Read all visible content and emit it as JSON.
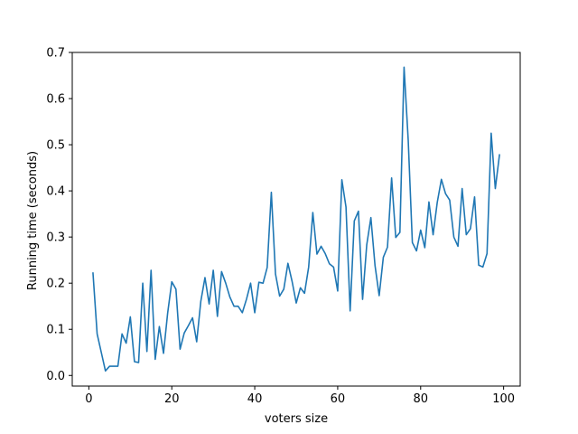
{
  "chart_data": {
    "type": "line",
    "title": "",
    "xlabel": "voters size",
    "ylabel": "Running time (seconds)",
    "xlim": [
      -4,
      104
    ],
    "ylim": [
      -0.023,
      0.7
    ],
    "xticks": [
      0,
      20,
      40,
      60,
      80,
      100
    ],
    "yticks": [
      0.0,
      0.1,
      0.2,
      0.3,
      0.4,
      0.5,
      0.6,
      0.7
    ],
    "xtick_labels": [
      "0",
      "20",
      "40",
      "60",
      "80",
      "100"
    ],
    "ytick_labels": [
      "0.0",
      "0.1",
      "0.2",
      "0.3",
      "0.4",
      "0.5",
      "0.6",
      "0.7"
    ],
    "grid": false,
    "colors": {
      "line": "#1f77b4"
    },
    "series": [
      {
        "x": [
          1,
          2,
          3,
          4,
          5,
          6,
          7,
          8,
          9,
          10,
          11,
          12,
          13,
          14,
          15,
          16,
          17,
          18,
          19,
          20,
          21,
          22,
          23,
          24,
          25,
          26,
          27,
          28,
          29,
          30,
          31,
          32,
          33,
          34,
          35,
          36,
          37,
          38,
          39,
          40,
          41,
          42,
          43,
          44,
          45,
          46,
          47,
          48,
          49,
          50,
          51,
          52,
          53,
          54,
          55,
          56,
          57,
          58,
          59,
          60,
          61,
          62,
          63,
          64,
          65,
          66,
          67,
          68,
          69,
          70,
          71,
          72,
          73,
          74,
          75,
          76,
          77,
          78,
          79,
          80,
          81,
          82,
          83,
          84,
          85,
          86,
          87,
          88,
          89,
          90,
          91,
          92,
          93,
          94,
          95,
          96,
          97,
          98,
          99
        ],
        "y": [
          0.222,
          0.09,
          0.05,
          0.01,
          0.02,
          0.02,
          0.02,
          0.09,
          0.07,
          0.127,
          0.03,
          0.028,
          0.2,
          0.052,
          0.228,
          0.035,
          0.106,
          0.048,
          0.135,
          0.203,
          0.187,
          0.057,
          0.092,
          0.108,
          0.125,
          0.073,
          0.161,
          0.212,
          0.155,
          0.228,
          0.128,
          0.225,
          0.2,
          0.17,
          0.15,
          0.15,
          0.136,
          0.165,
          0.2,
          0.136,
          0.202,
          0.2,
          0.234,
          0.397,
          0.22,
          0.172,
          0.187,
          0.243,
          0.204,
          0.157,
          0.19,
          0.178,
          0.235,
          0.353,
          0.263,
          0.28,
          0.264,
          0.242,
          0.235,
          0.183,
          0.424,
          0.365,
          0.14,
          0.335,
          0.356,
          0.165,
          0.283,
          0.342,
          0.238,
          0.173,
          0.256,
          0.278,
          0.428,
          0.299,
          0.31,
          0.668,
          0.51,
          0.288,
          0.27,
          0.315,
          0.277,
          0.376,
          0.305,
          0.375,
          0.425,
          0.394,
          0.38,
          0.3,
          0.28,
          0.405,
          0.305,
          0.318,
          0.387,
          0.239,
          0.235,
          0.264,
          0.525,
          0.405,
          0.478
        ]
      }
    ]
  }
}
